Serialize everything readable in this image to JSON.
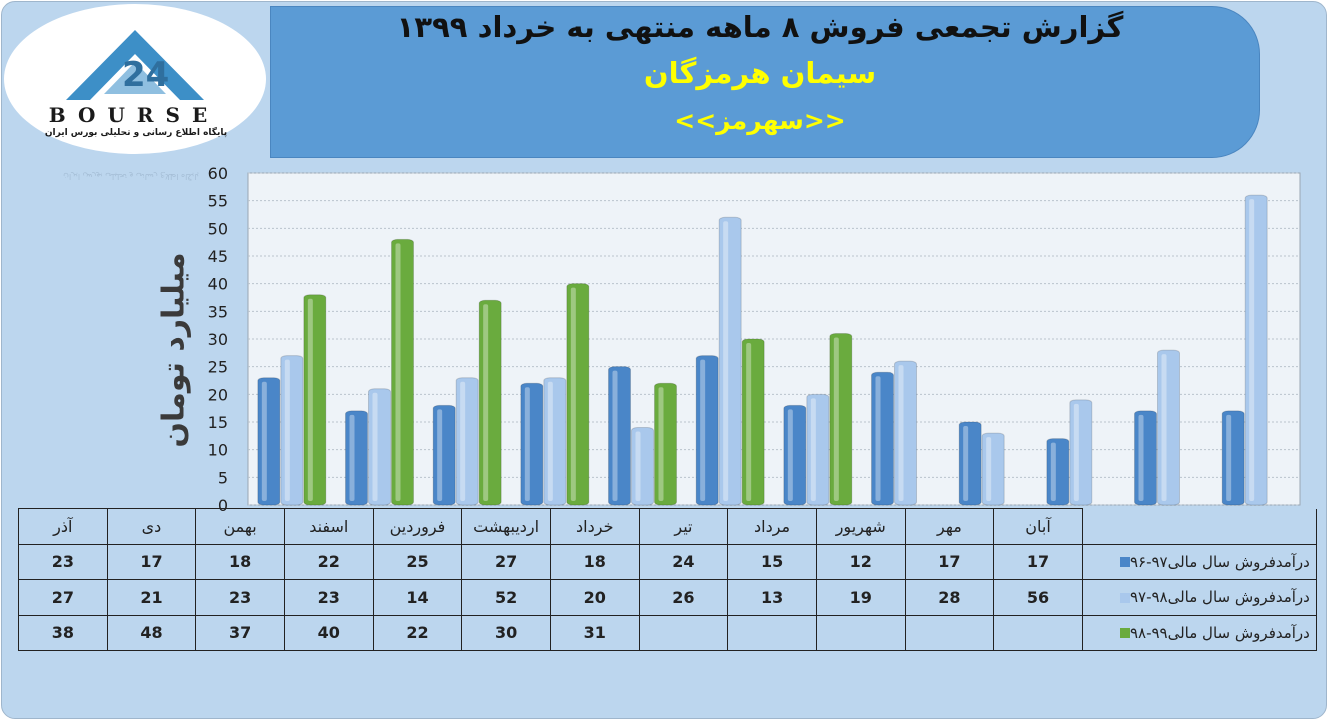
{
  "header": {
    "title": "گزارش تجمعی فروش ۸ ماهه منتهی به خرداد ۱۳۹۹",
    "company": "سیمان هرمزگان",
    "symbol": "<<سهرمز>>"
  },
  "logo": {
    "brand": "BOURSE",
    "tagline": "پایگاه اطلاع رسانی و تحلیلی بورس ایران"
  },
  "colors": {
    "series1": "#4a86c8",
    "series2": "#a9c8ec",
    "series3": "#6aab3e",
    "banner": "#5b9bd5",
    "background": "#bcd6ee"
  },
  "chart_data": {
    "type": "bar",
    "title": "گزارش تجمعی فروش ۸ ماهه منتهی به خرداد ۱۳۹۹",
    "ylabel": "میلیارد تومان",
    "xlabel": "",
    "ylim": [
      0,
      60
    ],
    "yticks": [
      0,
      5,
      10,
      15,
      20,
      25,
      30,
      35,
      40,
      45,
      50,
      55,
      60
    ],
    "grid": true,
    "categories": [
      "آذر",
      "دی",
      "بهمن",
      "اسفند",
      "فروردین",
      "اردیبهشت",
      "خرداد",
      "تیر",
      "مرداد",
      "شهریور",
      "مهر",
      "آبان"
    ],
    "series": [
      {
        "name": "درآمدفروش سال مالی۹۷-۹۶",
        "values": [
          23,
          17,
          18,
          22,
          25,
          27,
          18,
          24,
          15,
          12,
          17,
          17
        ]
      },
      {
        "name": "درآمدفروش سال مالی۹۸-۹۷",
        "values": [
          27,
          21,
          23,
          23,
          14,
          52,
          20,
          26,
          13,
          19,
          28,
          56
        ]
      },
      {
        "name": "درآمدفروش سال مالی۹۹-۹۸",
        "values": [
          38,
          48,
          37,
          40,
          22,
          30,
          31,
          null,
          null,
          null,
          null,
          null
        ]
      }
    ]
  }
}
